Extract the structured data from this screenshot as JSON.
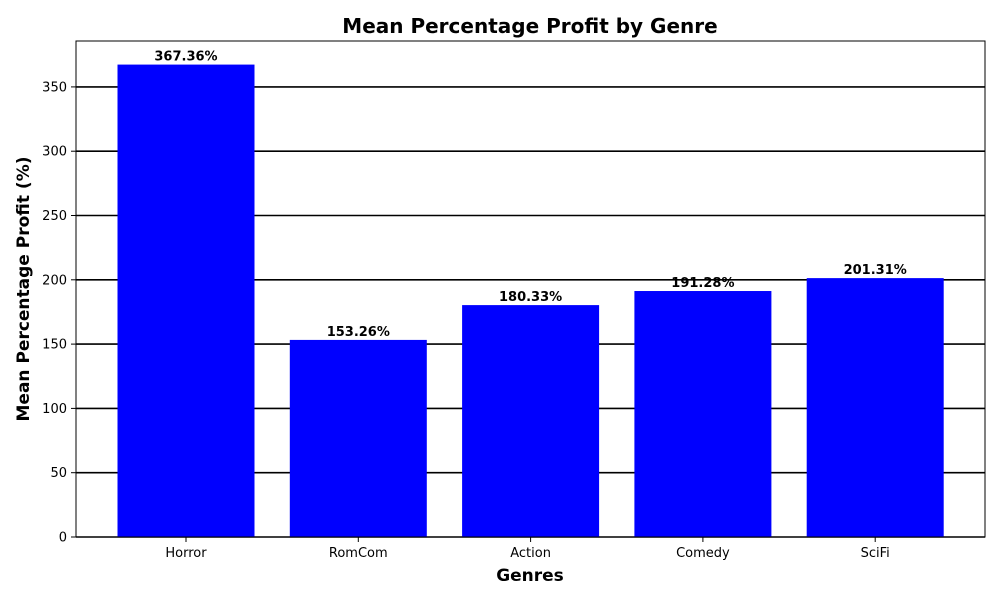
{
  "chart_data": {
    "type": "bar",
    "title": "Mean Percentage Profit by Genre",
    "xlabel": "Genres",
    "ylabel": "Mean Percentage Profit (%)",
    "categories": [
      "Horror",
      "RomCom",
      "Action",
      "Comedy",
      "SciFi"
    ],
    "values": [
      367.36,
      153.26,
      180.33,
      191.28,
      201.31
    ],
    "data_labels": [
      "367.36%",
      "153.26%",
      "180.33%",
      "191.28%",
      "201.31%"
    ],
    "ylim": [
      0,
      385.7
    ],
    "yticks": [
      0,
      50,
      100,
      150,
      200,
      250,
      300,
      350
    ],
    "grid": "horizontal",
    "bar_color": "#0000ff",
    "grid_color": "#000000"
  }
}
